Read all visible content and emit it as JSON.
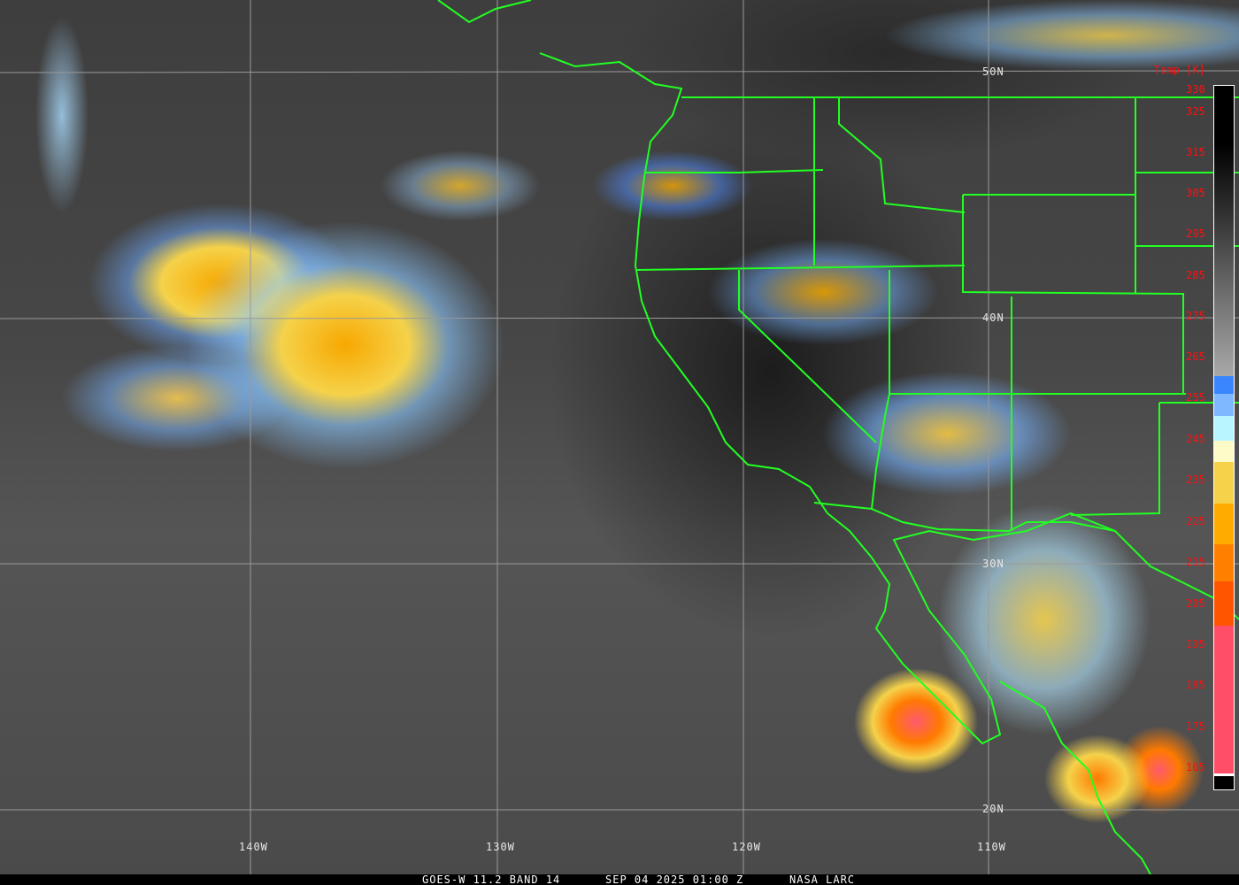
{
  "caption": {
    "satellite": "GOES-W 11.2 BAND 14",
    "datetime": "SEP 04 2025 01:00 Z",
    "source": "NASA LARC"
  },
  "grid": {
    "latitudes": [
      "50N",
      "40N",
      "30N",
      "20N"
    ],
    "longitudes": [
      "140W",
      "130W",
      "120W",
      "110W"
    ]
  },
  "colorbar": {
    "title": "Temp [K]",
    "ticks": [
      "330",
      "325",
      "315",
      "305",
      "295",
      "285",
      "275",
      "265",
      "255",
      "245",
      "235",
      "225",
      "215",
      "205",
      "195",
      "185",
      "175",
      "165"
    ],
    "stops": [
      {
        "from_k": 330,
        "to_k": 260,
        "color": "gradient #000000 to #a8a8a8"
      },
      {
        "from_k": 260,
        "to_k": 256,
        "color": "#3a86ff"
      },
      {
        "from_k": 256,
        "to_k": 250,
        "color": "#7fb8ff"
      },
      {
        "from_k": 250,
        "to_k": 244,
        "color": "#b8f6ff"
      },
      {
        "from_k": 244,
        "to_k": 239,
        "color": "#fffbc8"
      },
      {
        "from_k": 239,
        "to_k": 229,
        "color": "#f5d24a"
      },
      {
        "from_k": 229,
        "to_k": 219,
        "color": "#ffab00"
      },
      {
        "from_k": 219,
        "to_k": 210,
        "color": "#ff8000"
      },
      {
        "from_k": 210,
        "to_k": 200,
        "color": "#ff5500"
      },
      {
        "from_k": 200,
        "to_k": 164,
        "color": "#ff4f68"
      },
      {
        "from_k": 164,
        "to_k": 160,
        "color": "#000000"
      }
    ]
  },
  "colors": {
    "borders": "#22ff22",
    "grid": "#9a9a9a",
    "labels": "#ff1010"
  }
}
